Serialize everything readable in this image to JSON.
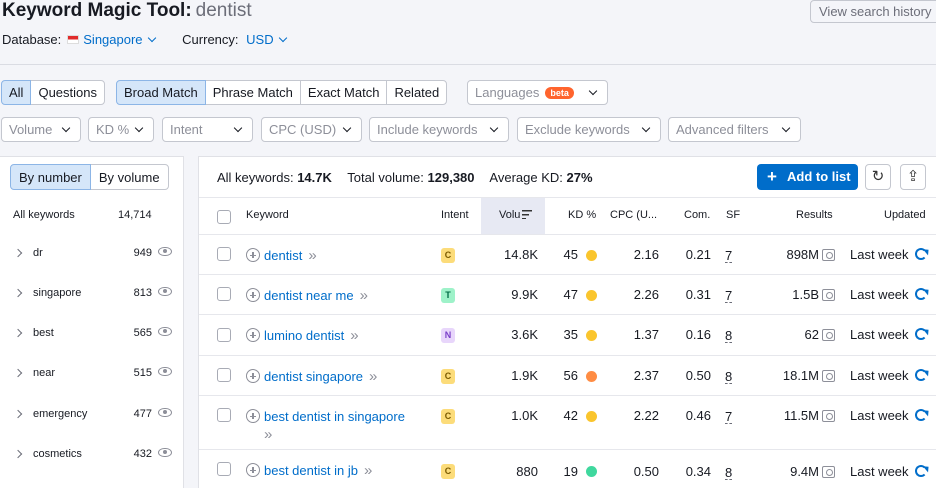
{
  "header": {
    "title": "Keyword Magic Tool:",
    "query": "dentist",
    "history_button": "View search history",
    "database_label": "Database:",
    "database_value": "Singapore",
    "currency_label": "Currency:",
    "currency_value": "USD"
  },
  "filters": {
    "type_tabs": [
      "All",
      "Questions"
    ],
    "match_tabs": [
      "Broad Match",
      "Phrase Match",
      "Exact Match",
      "Related"
    ],
    "languages": "Languages",
    "beta": "beta",
    "dropdowns": [
      "Volume",
      "KD %",
      "Intent",
      "CPC (USD)",
      "Include keywords",
      "Exclude keywords",
      "Advanced filters"
    ]
  },
  "left": {
    "tabs": [
      "By number",
      "By volume"
    ],
    "header_label": "All keywords",
    "header_count": "14,714",
    "groups": [
      {
        "label": "dr",
        "count": "949"
      },
      {
        "label": "singapore",
        "count": "813"
      },
      {
        "label": "best",
        "count": "565"
      },
      {
        "label": "near",
        "count": "515"
      },
      {
        "label": "emergency",
        "count": "477"
      },
      {
        "label": "cosmetics",
        "count": "432"
      }
    ]
  },
  "summary": {
    "all_label": "All keywords:",
    "all_value": "14.7K",
    "volume_label": "Total volume:",
    "volume_value": "129,380",
    "kd_label": "Average KD:",
    "kd_value": "27%",
    "add_button": "Add to list"
  },
  "table": {
    "columns": {
      "keyword": "Keyword",
      "intent": "Intent",
      "volume": "Volu",
      "kd": "KD %",
      "cpc": "CPC (U...",
      "com": "Com.",
      "sf": "SF",
      "results": "Results",
      "updated": "Updated"
    },
    "rows": [
      {
        "keyword": "dentist",
        "intent": "C",
        "volume": "14.8K",
        "kd": "45",
        "cpc": "2.16",
        "com": "0.21",
        "sf": "7",
        "results": "898M",
        "updated": "Last week"
      },
      {
        "keyword": "dentist near me",
        "intent": "T",
        "volume": "9.9K",
        "kd": "47",
        "cpc": "2.26",
        "com": "0.31",
        "sf": "7",
        "results": "1.5B",
        "updated": "Last week"
      },
      {
        "keyword": "lumino dentist",
        "intent": "N",
        "volume": "3.6K",
        "kd": "35",
        "cpc": "1.37",
        "com": "0.16",
        "sf": "8",
        "results": "62",
        "updated": "Last week"
      },
      {
        "keyword": "dentist singapore",
        "intent": "C",
        "volume": "1.9K",
        "kd": "56",
        "cpc": "2.37",
        "com": "0.50",
        "sf": "8",
        "results": "18.1M",
        "updated": "Last week"
      },
      {
        "keyword": "best dentist in singapore",
        "intent": "C",
        "volume": "1.0K",
        "kd": "42",
        "cpc": "2.22",
        "com": "0.46",
        "sf": "7",
        "results": "11.5M",
        "updated": "Last week"
      },
      {
        "keyword": "best dentist in jb",
        "intent": "C",
        "volume": "880",
        "kd": "19",
        "cpc": "0.50",
        "com": "0.34",
        "sf": "8",
        "results": "9.4M",
        "updated": "Last week"
      }
    ]
  },
  "colors": {
    "accent": "#006dca",
    "intent_c": "#fcdc7a",
    "intent_t": "#9ef2c9",
    "intent_n": "#e8d6fb",
    "kd_yellow": "#fac52d",
    "kd_orange": "#ff8c43",
    "kd_green": "#3fd89e"
  }
}
